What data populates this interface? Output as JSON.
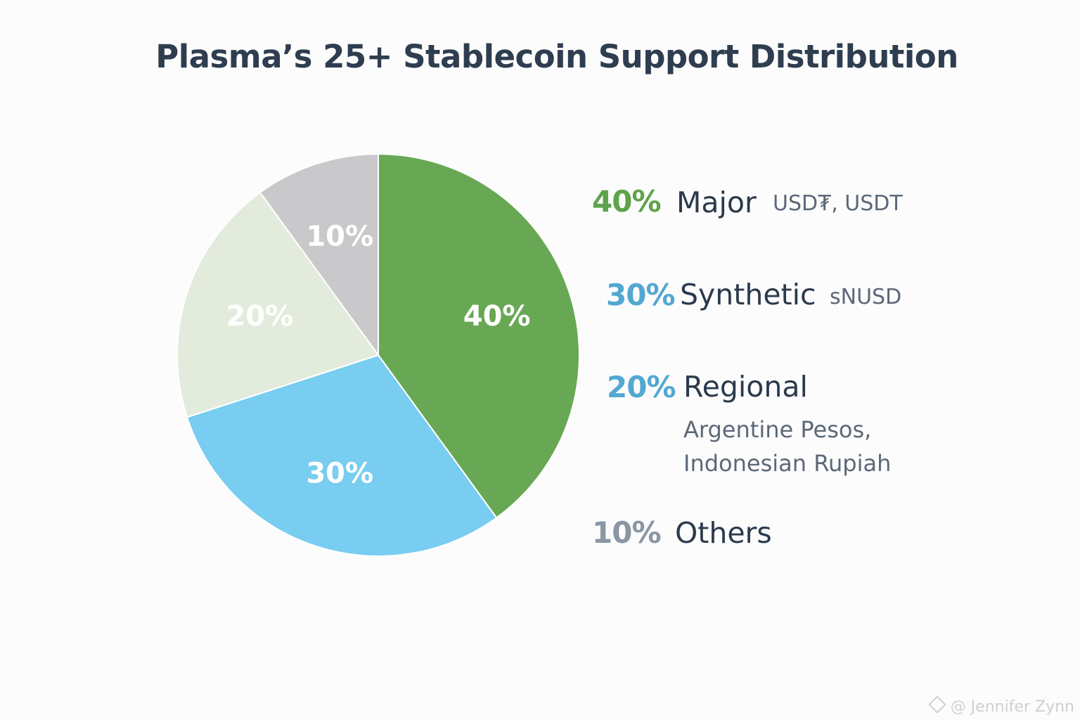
{
  "chart_data": {
    "type": "pie",
    "title": "Plasma’s 25+ Stablecoin Support Distribution",
    "categories": [
      "Major",
      "Synthetic",
      "Regional",
      "Others"
    ],
    "values": [
      40,
      30,
      20,
      10
    ],
    "slice_labels": [
      "40%",
      "30%",
      "20%",
      "10%"
    ],
    "colors": [
      "#68a854",
      "#78cdf0",
      "#e3ecdc",
      "#c9c9cc"
    ],
    "legend": [
      {
        "pct": "40%",
        "name": "Major",
        "detail": "USD₮, USDT",
        "pct_color": "#5ea34a"
      },
      {
        "pct": "30%",
        "name": "Synthetic",
        "detail": "sNUSD",
        "pct_color": "#52a8d2"
      },
      {
        "pct": "20%",
        "name": "Regional",
        "detail_lines": [
          "Argentine Pesos,",
          "Indonesian Rupiah"
        ],
        "pct_color": "#52a8d2"
      },
      {
        "pct": "10%",
        "name": "Others",
        "pct_color": "#8a96a3"
      }
    ],
    "legend_placement": "right"
  },
  "watermark": "@ Jennifer Zynn"
}
